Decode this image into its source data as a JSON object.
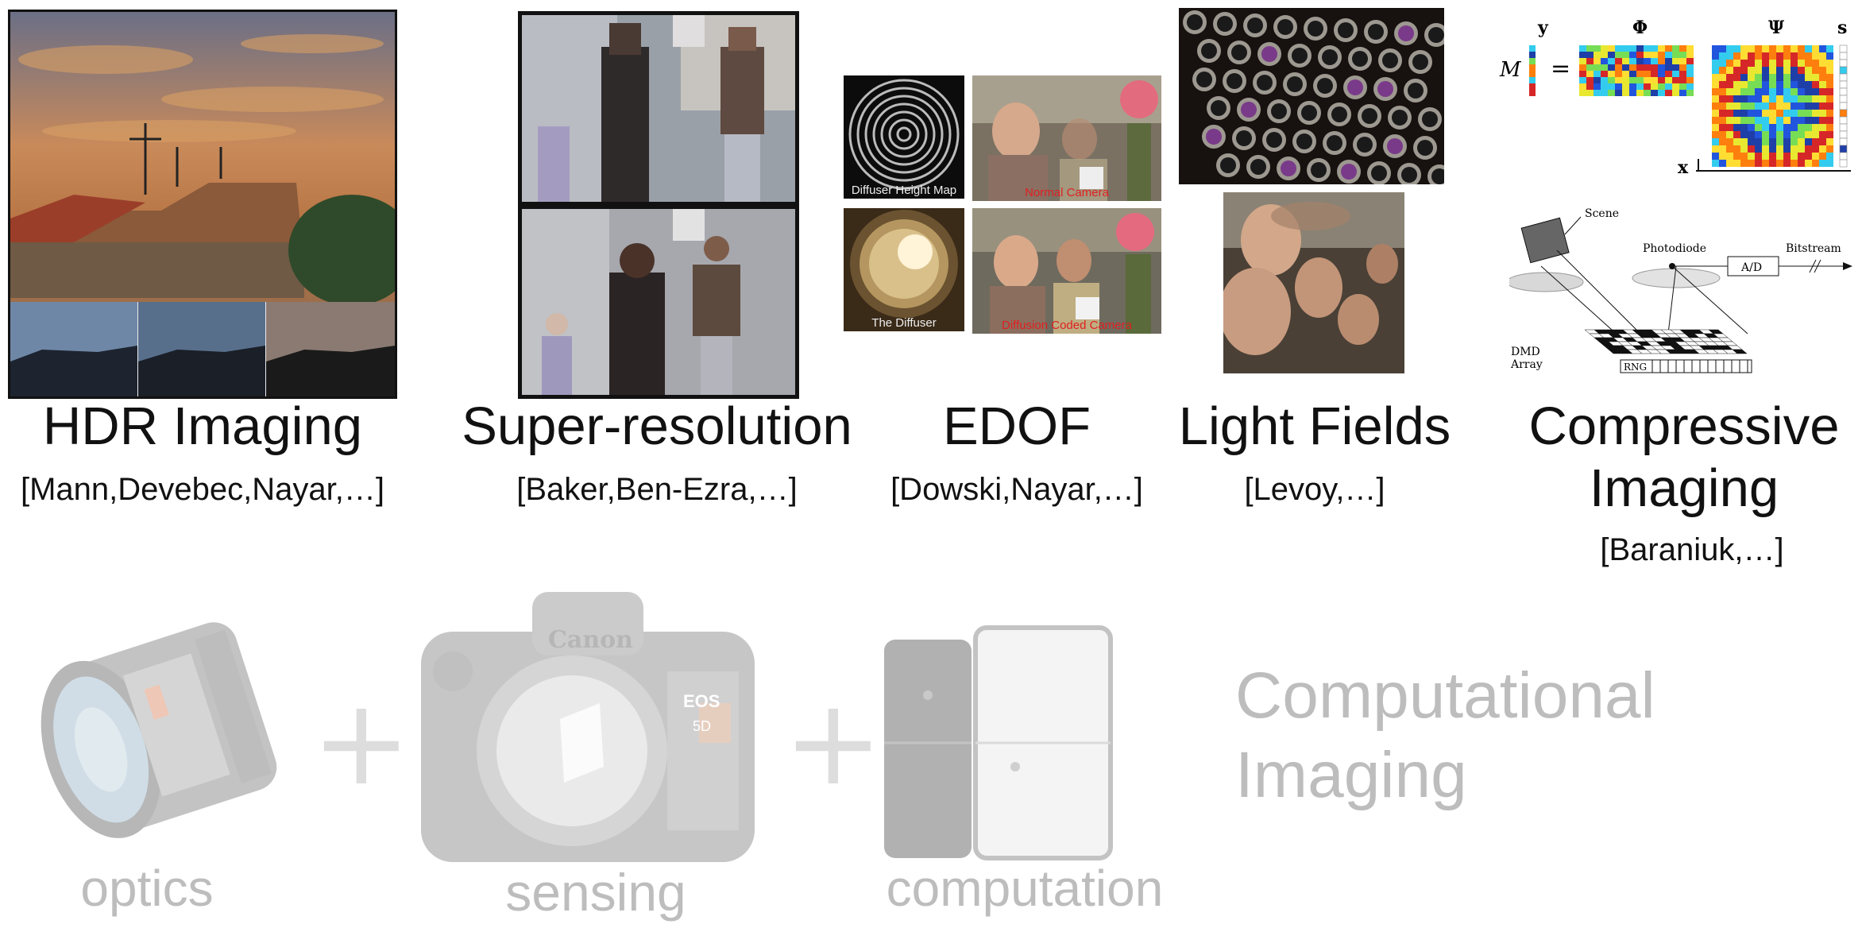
{
  "topics": [
    {
      "title": "HDR Imaging",
      "cite": "[Mann,Devebec,Nayar,…]"
    },
    {
      "title": "Super-resolution",
      "cite": "[Baker,Ben-Ezra,…]"
    },
    {
      "title": "EDOF",
      "cite": "[Dowski,Nayar,…]"
    },
    {
      "title": "Light Fields",
      "cite": "[Levoy,…]"
    },
    {
      "title_line1": "Compressive",
      "title_line2": "Imaging",
      "cite": "[Baraniuk,…]"
    }
  ],
  "edof_captions": {
    "diffuser_height_map": "Diffuser Height Map",
    "normal_camera": "Normal Camera",
    "the_diffuser": "The Diffuser",
    "diffusion_coded_camera": "Diffusion Coded Camera"
  },
  "compressive_figure": {
    "y": "y",
    "phi": "Φ",
    "psi": "Ψ",
    "s": "s",
    "M": "M",
    "equals": "=",
    "x": "x",
    "scene": "Scene",
    "photodiode": "Photodiode",
    "bitstream": "Bitstream",
    "ad": "A/D",
    "dmd": "DMD",
    "array": "Array",
    "rng": "RNG"
  },
  "camera_labels": {
    "canon": "Canon",
    "eos": "EOS",
    "model": "5D"
  },
  "bottom": {
    "optics": "optics",
    "sensing": "sensing",
    "computation": "computation",
    "plus": "+",
    "computational_line1": "Computational",
    "computational_line2": "Imaging"
  },
  "colors": {
    "text": "#111111",
    "faded": "#bdbdbd",
    "red_caption": "#e02020"
  }
}
